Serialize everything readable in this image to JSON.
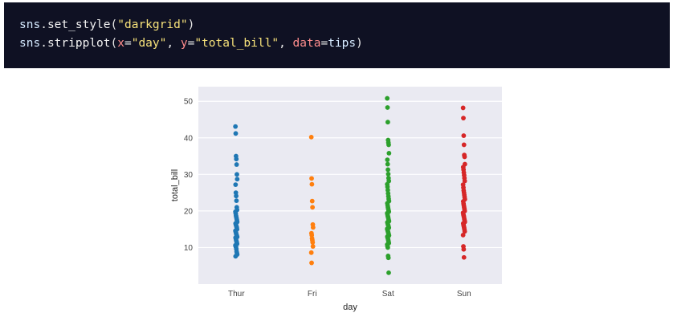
{
  "code": {
    "line1": {
      "module": "sns",
      "dot": ".",
      "fn": "set_style",
      "open": "(",
      "arg": "\"darkgrid\"",
      "close": ")"
    },
    "line2": {
      "module": "sns",
      "dot": ".",
      "fn": "stripplot",
      "open": "(",
      "k1": "x",
      "eq1": "=",
      "v1": "\"day\"",
      "sep1": ", ",
      "k2": "y",
      "eq2": "=",
      "v2": "\"total_bill\"",
      "sep2": ", ",
      "k3": "data",
      "eq3": "=",
      "v3": "tips",
      "close": ")"
    }
  },
  "colors": {
    "plot_bg": "#eaeaf2",
    "grid": "#ffffff",
    "Thur": "#1f77b4",
    "Fri": "#ff7f0e",
    "Sat": "#2ca02c",
    "Sun": "#d62728"
  },
  "chart_data": {
    "type": "scatter",
    "style": "darkgrid",
    "xlabel": "day",
    "ylabel": "total_bill",
    "categories": [
      "Thur",
      "Fri",
      "Sat",
      "Sun"
    ],
    "ylim": [
      0,
      54
    ],
    "yticks": [
      10,
      20,
      30,
      40,
      50
    ],
    "series": [
      {
        "name": "Thur",
        "values": [
          43.1,
          41.2,
          35.0,
          34.2,
          32.7,
          30.0,
          28.7,
          27.2,
          25.0,
          24.1,
          22.8,
          21.0,
          20.3,
          19.8,
          19.3,
          18.7,
          18.3,
          17.9,
          17.5,
          17.0,
          16.6,
          16.3,
          16.0,
          15.7,
          15.5,
          15.0,
          14.6,
          14.3,
          14.0,
          13.6,
          13.4,
          13.1,
          12.9,
          12.7,
          12.4,
          12.0,
          11.7,
          11.4,
          11.0,
          10.6,
          10.3,
          10.1,
          9.6,
          8.9,
          8.5,
          8.1,
          7.6
        ]
      },
      {
        "name": "Fri",
        "values": [
          40.2,
          28.9,
          27.3,
          22.7,
          21.0,
          16.3,
          15.5,
          13.9,
          13.4,
          12.5,
          12.0,
          11.4,
          10.3,
          8.6,
          5.8
        ]
      },
      {
        "name": "Sat",
        "values": [
          50.8,
          48.3,
          44.3,
          39.4,
          38.7,
          38.1,
          35.8,
          34.0,
          32.8,
          31.3,
          30.1,
          29.0,
          28.2,
          27.3,
          26.6,
          25.7,
          24.8,
          24.0,
          23.3,
          22.7,
          22.1,
          21.5,
          21.0,
          20.5,
          20.1,
          19.8,
          19.4,
          19.0,
          18.6,
          18.3,
          17.9,
          17.5,
          17.2,
          16.9,
          16.6,
          16.3,
          16.0,
          15.7,
          15.4,
          15.1,
          14.8,
          14.5,
          14.2,
          13.9,
          13.6,
          13.3,
          13.0,
          12.7,
          12.4,
          12.0,
          11.6,
          11.2,
          10.8,
          10.3,
          10.0,
          7.7,
          7.2,
          3.1
        ]
      },
      {
        "name": "Sun",
        "values": [
          48.2,
          45.4,
          40.6,
          38.1,
          35.3,
          34.8,
          32.8,
          32.0,
          31.3,
          30.5,
          29.8,
          29.0,
          28.2,
          27.2,
          26.4,
          25.6,
          25.0,
          24.4,
          23.8,
          23.2,
          22.6,
          22.0,
          21.5,
          21.0,
          20.5,
          20.0,
          19.5,
          19.0,
          18.7,
          18.3,
          17.8,
          17.4,
          17.0,
          16.6,
          16.2,
          15.8,
          15.4,
          14.9,
          14.4,
          13.4,
          10.3,
          9.5,
          7.3
        ]
      }
    ]
  }
}
